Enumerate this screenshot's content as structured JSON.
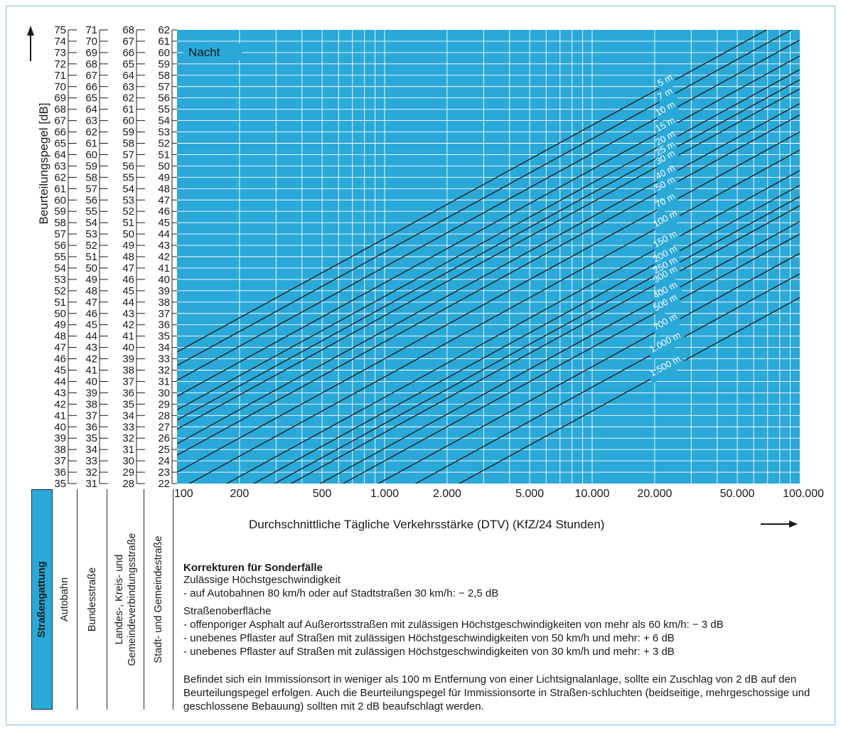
{
  "chart_data": {
    "type": "line",
    "title": "",
    "panel_label": "Nacht",
    "xlabel": "Durchschnittliche Tägliche Verkehrsstärke (DTV) (KfZ/24 Stunden)",
    "ylabel": "Beurteilungspegel [dB]",
    "xscale": "log",
    "xlim": [
      100,
      100000
    ],
    "ylim": [
      35,
      75
    ],
    "x_ticks": [
      100,
      200,
      500,
      1000,
      2000,
      5000,
      10000,
      20000,
      50000,
      100000
    ],
    "x_tick_labels": [
      "100",
      "200",
      "500",
      "1.000",
      "2.000",
      "5.000",
      "10.000",
      "20.000",
      "50.000",
      "100.000"
    ],
    "y_scales": [
      {
        "road": "Autobahn",
        "min": 35,
        "max": 75
      },
      {
        "road": "Bundesstraße",
        "min": 31,
        "max": 71
      },
      {
        "road": "Landes-, Kreis- und Gemeindeverbindungsstraße",
        "min": 28,
        "max": 68
      },
      {
        "road": "Stadt- und Gemeindestraße",
        "min": 22,
        "max": 62
      }
    ],
    "grid": true,
    "series": [
      {
        "name": "5 m",
        "x": [
          100,
          100000
        ],
        "y": [
          46.6,
          76.6
        ]
      },
      {
        "name": "7 m",
        "x": [
          100,
          100000
        ],
        "y": [
          45.4,
          75.4
        ]
      },
      {
        "name": "10 m",
        "x": [
          100,
          100000
        ],
        "y": [
          44.1,
          74.1
        ]
      },
      {
        "name": "15 m",
        "x": [
          100,
          100000
        ],
        "y": [
          42.7,
          72.7
        ]
      },
      {
        "name": "20 m",
        "x": [
          100,
          100000
        ],
        "y": [
          41.5,
          71.5
        ]
      },
      {
        "name": "25 m",
        "x": [
          100,
          100000
        ],
        "y": [
          40.6,
          70.6
        ]
      },
      {
        "name": "30 m",
        "x": [
          100,
          100000
        ],
        "y": [
          39.8,
          69.8
        ]
      },
      {
        "name": "40 m",
        "x": [
          100,
          100000
        ],
        "y": [
          38.5,
          68.5
        ]
      },
      {
        "name": "50 m",
        "x": [
          100,
          100000
        ],
        "y": [
          37.5,
          67.5
        ]
      },
      {
        "name": "70 m",
        "x": [
          100,
          100000
        ],
        "y": [
          36.0,
          66.0
        ]
      },
      {
        "name": "100 m",
        "x": [
          100,
          100000
        ],
        "y": [
          34.4,
          64.4
        ]
      },
      {
        "name": "150 m",
        "x": [
          100,
          100000
        ],
        "y": [
          32.6,
          62.6
        ]
      },
      {
        "name": "200 m",
        "x": [
          100,
          100000
        ],
        "y": [
          31.3,
          61.3
        ]
      },
      {
        "name": "250 m",
        "x": [
          100,
          100000
        ],
        "y": [
          30.3,
          60.3
        ]
      },
      {
        "name": "300 m",
        "x": [
          100,
          100000
        ],
        "y": [
          29.5,
          59.5
        ]
      },
      {
        "name": "400 m",
        "x": [
          100,
          100000
        ],
        "y": [
          28.1,
          58.1
        ]
      },
      {
        "name": "500 m",
        "x": [
          100,
          100000
        ],
        "y": [
          27.0,
          57.0
        ]
      },
      {
        "name": "700 m",
        "x": [
          100,
          100000
        ],
        "y": [
          25.3,
          55.3
        ]
      },
      {
        "name": "1.000 m",
        "x": [
          100,
          100000
        ],
        "y": [
          23.5,
          53.5
        ]
      },
      {
        "name": "1.500 m",
        "x": [
          100,
          100000
        ],
        "y": [
          21.4,
          51.4
        ]
      }
    ],
    "label_x": 23000
  },
  "road_type_table": {
    "header": "Straßengattung",
    "columns": [
      "Autobahn",
      "Bundesstraße",
      "Landes-, Kreis- und|Gemeindeverbindungsstraße",
      "Stadt- und Gemeindestraße"
    ]
  },
  "corrections": {
    "heading": "Korrekturen für Sonderfälle",
    "lines": [
      "Zulässige Höchstgeschwindigkeit",
      "- auf Autobahnen 80 km/h oder auf Stadtstraßen 30 km/h: − 2,5 dB",
      "Straßenoberfläche",
      "- offenporiger Asphalt auf Außerortsstraßen mit zulässigen Höchstgeschwindigkeiten von mehr als 60 km/h: − 3 dB",
      "- unebenes Pflaster auf Straßen mit zulässigen Höchstgeschwindigkeiten von 50 km/h und mehr: + 6 dB",
      "- unebenes Pflaster auf Straßen mit zulässigen Höchstgeschwindigkeiten von 30 km/h und mehr: + 3 dB"
    ],
    "paragraph": "Befindet sich ein Immissionsort in weniger als 100 m Entfernung von einer Lichtsignalanlage, sollte ein Zuschlag von 2 dB auf den Beurteilungspegel erfolgen. Auch die Beurteilungspegel für Immissionsorte in Straßen-schluchten (beidseitige, mehrgeschossige und geschlossene Bebauung) sollten mit 2 dB beaufschlagt werden."
  },
  "colors": {
    "plot_background": "#2aa8d8",
    "grid": "#ffffff",
    "line": "#1a1a1a",
    "frame": "#7cc3e3",
    "table_header": "#2aa8d8"
  }
}
